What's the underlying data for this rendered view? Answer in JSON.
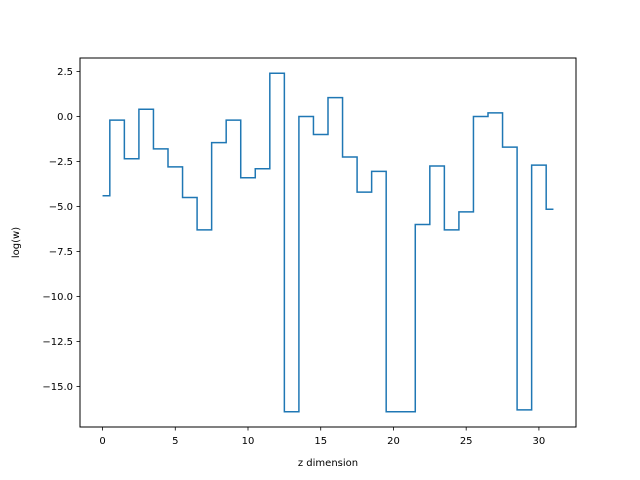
{
  "chart_data": {
    "type": "line",
    "drawstyle": "steps-mid",
    "title": "",
    "xlabel": "z dimension",
    "ylabel": "log(w)",
    "xlim": [
      -1.55,
      32.55
    ],
    "ylim": [
      -17.25,
      3.25
    ],
    "xticks": [
      0,
      5,
      10,
      15,
      20,
      25,
      30
    ],
    "yticks": [
      2.5,
      0.0,
      -2.5,
      -5.0,
      -7.5,
      -10.0,
      -12.5,
      -15.0
    ],
    "ytick_labels": [
      "2.5",
      "0.0",
      "−2.5",
      "−5.0",
      "−7.5",
      "−10.0",
      "−12.5",
      "−15.0"
    ],
    "grid": false,
    "line_color": "#1f77b4",
    "x": [
      0,
      1,
      2,
      3,
      4,
      5,
      6,
      7,
      8,
      9,
      10,
      11,
      12,
      13,
      14,
      15,
      16,
      17,
      18,
      19,
      20,
      21,
      22,
      23,
      24,
      25,
      26,
      27,
      28,
      29,
      30,
      31
    ],
    "values": [
      -4.4,
      -0.2,
      -2.35,
      0.4,
      -1.8,
      -2.8,
      -4.5,
      -6.3,
      -1.45,
      -0.2,
      -3.4,
      -2.9,
      2.4,
      -16.4,
      0.0,
      -1.0,
      1.05,
      -2.25,
      -4.2,
      -3.05,
      -16.4,
      -16.4,
      -6.0,
      -2.75,
      -6.3,
      -5.3,
      0.0,
      0.2,
      -1.7,
      -16.3,
      -2.7,
      -5.15
    ]
  }
}
